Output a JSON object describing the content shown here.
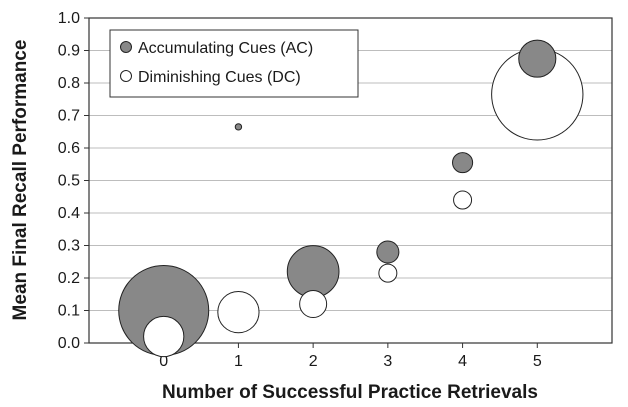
{
  "chart_data": {
    "type": "scatter",
    "title": "",
    "xlabel": "Number of Successful Practice Retrievals",
    "ylabel": "Mean Final Recall Performance",
    "ylim": [
      0,
      1.0
    ],
    "xlim": [
      -1,
      6
    ],
    "y_ticks": [
      "0.0",
      "0.1",
      "0.2",
      "0.3",
      "0.4",
      "0.5",
      "0.6",
      "0.7",
      "0.8",
      "0.9",
      "1.0"
    ],
    "x_ticks": [
      "0",
      "1",
      "2",
      "3",
      "4",
      "5"
    ],
    "grid": "horizontal",
    "legend_position": "top-left",
    "series": [
      {
        "name": "Accumulating Cues (AC)",
        "fill": "#888888",
        "points": [
          {
            "x": 0,
            "y": 0.1,
            "size": 1.0
          },
          {
            "x": 1,
            "y": 0.665,
            "size": 0.005
          },
          {
            "x": 2,
            "y": 0.22,
            "size": 0.33
          },
          {
            "x": 3,
            "y": 0.28,
            "size": 0.06
          },
          {
            "x": 4,
            "y": 0.555,
            "size": 0.05
          },
          {
            "x": 5,
            "y": 0.875,
            "size": 0.17
          }
        ]
      },
      {
        "name": "Diminishing Cues (DC)",
        "fill": "#ffffff",
        "points": [
          {
            "x": 0,
            "y": 0.02,
            "size": 0.2
          },
          {
            "x": 1,
            "y": 0.095,
            "size": 0.21
          },
          {
            "x": 2,
            "y": 0.12,
            "size": 0.09
          },
          {
            "x": 3,
            "y": 0.215,
            "size": 0.04
          },
          {
            "x": 4,
            "y": 0.44,
            "size": 0.04
          },
          {
            "x": 5,
            "y": 0.765,
            "size": 1.03
          }
        ]
      }
    ]
  }
}
